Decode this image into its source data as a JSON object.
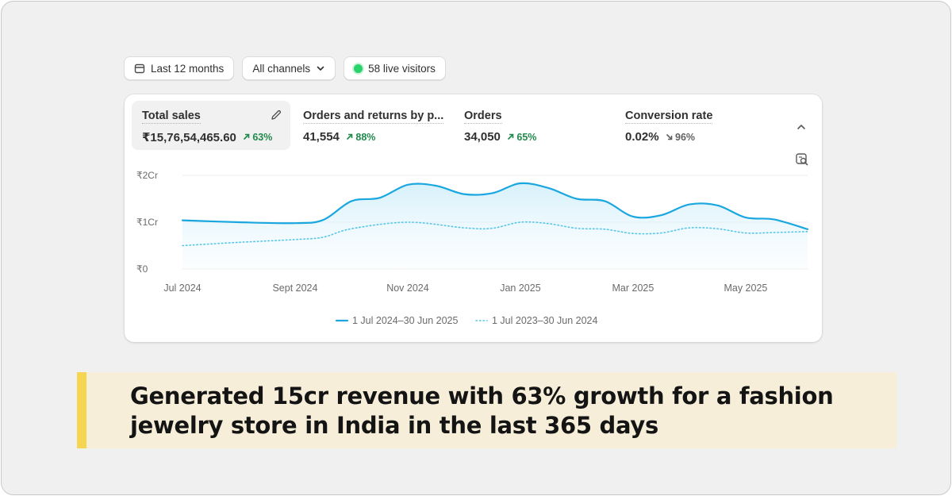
{
  "filters": {
    "date_range": "Last 12 months",
    "channels": "All channels",
    "live_visitors": "58 live visitors"
  },
  "metrics": [
    {
      "label": "Total sales",
      "value": "₹15,76,54,465.60",
      "change": "63%",
      "direction": "up"
    },
    {
      "label": "Orders and returns by p...",
      "value": "41,554",
      "change": "88%",
      "direction": "up"
    },
    {
      "label": "Orders",
      "value": "34,050",
      "change": "65%",
      "direction": "up"
    },
    {
      "label": "Conversion rate",
      "value": "0.02%",
      "change": "96%",
      "direction": "down"
    }
  ],
  "colors": {
    "current": "#1aa7e0",
    "previous": "#58c7e6",
    "positive": "#1f8a4c",
    "banner_bg": "#f6eed8",
    "banner_bar": "#f6d552"
  },
  "chart_data": {
    "type": "line",
    "y_tick_labels": [
      "₹0",
      "₹1Cr",
      "₹2Cr"
    ],
    "y_ticks": [
      0,
      1,
      2
    ],
    "ylim": [
      0,
      2
    ],
    "x_tick_labels": [
      "Jul 2024",
      "Sept 2024",
      "Nov 2024",
      "Jan 2025",
      "Mar 2025",
      "May 2025"
    ],
    "x_tick_positions": [
      0,
      2,
      4,
      6,
      8,
      10
    ],
    "x_range": [
      0,
      11.1
    ],
    "grid": true,
    "legend_position": "bottom",
    "series": [
      {
        "name": "1 Jul 2024–30 Jun 2025",
        "style": "solid",
        "x": [
          0,
          1,
          2,
          2.5,
          3,
          3.5,
          4,
          4.5,
          5,
          5.5,
          6,
          6.5,
          7,
          7.5,
          8,
          8.5,
          9,
          9.5,
          10,
          10.5,
          11.1
        ],
        "values": [
          1.04,
          1.0,
          0.98,
          1.05,
          1.45,
          1.52,
          1.8,
          1.78,
          1.6,
          1.62,
          1.83,
          1.73,
          1.5,
          1.45,
          1.12,
          1.15,
          1.38,
          1.36,
          1.1,
          1.06,
          0.85
        ]
      },
      {
        "name": "1 Jul 2023–30 Jun 2024",
        "style": "dotted",
        "x": [
          0,
          1,
          2,
          2.5,
          3,
          4,
          5,
          5.5,
          6,
          6.5,
          7,
          7.5,
          8,
          8.5,
          9,
          9.5,
          10,
          10.5,
          11.1
        ],
        "values": [
          0.5,
          0.57,
          0.63,
          0.68,
          0.86,
          1.0,
          0.88,
          0.87,
          1.0,
          0.97,
          0.87,
          0.85,
          0.76,
          0.77,
          0.88,
          0.86,
          0.77,
          0.78,
          0.8
        ]
      }
    ]
  },
  "banner": {
    "line1": "Generated 15cr revenue with 63% growth for a fashion",
    "line2": "jewelry store in India in the last 365 days"
  }
}
